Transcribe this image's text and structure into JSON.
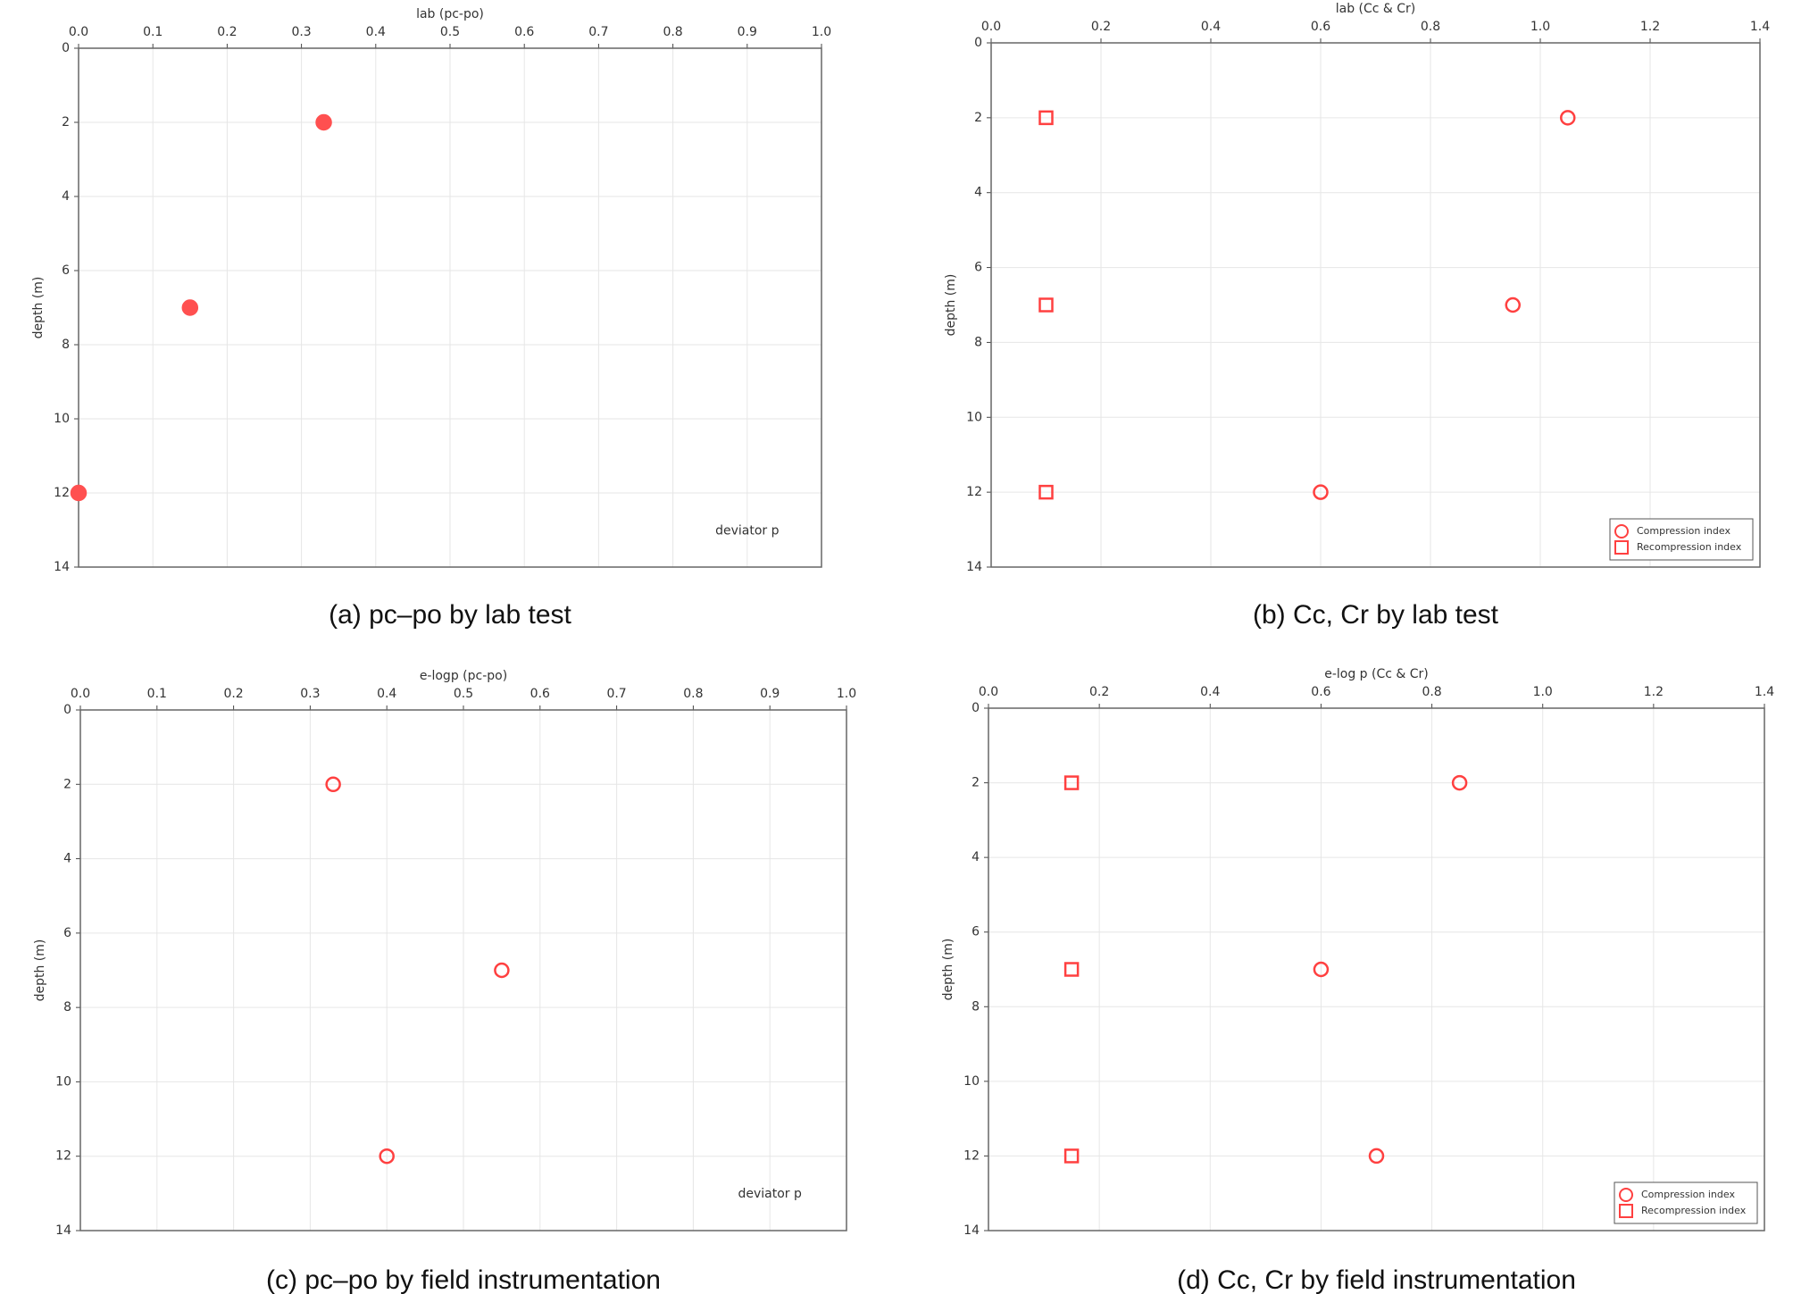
{
  "chart_data": [
    {
      "type": "scatter",
      "title": "lab (pc-po)",
      "caption": "(a) pc–po by lab test",
      "y_label": "depth (m)",
      "annotation": "deviator p",
      "xlim": [
        0,
        1
      ],
      "xticks": [
        {
          "value": 0,
          "label": "0.0"
        },
        0.1,
        0.2,
        0.3,
        0.4,
        0.5,
        0.6,
        0.7,
        0.8,
        0.9,
        {
          "value": 1,
          "label": "1.0"
        }
      ],
      "ylim": [
        0,
        14
      ],
      "yticks": [
        0,
        2,
        4,
        6,
        8,
        10,
        12,
        14
      ],
      "invert_y": true,
      "grid": true,
      "series": [
        {
          "color": "#ff5050",
          "marker": "circle",
          "filled": true,
          "x": [
            0.33,
            0.15,
            0.0
          ],
          "values": [
            2,
            7,
            12
          ]
        }
      ]
    },
    {
      "type": "scatter",
      "title": "lab (Cc & Cr)",
      "caption": "(b) Cc, Cr by lab test",
      "y_label": "depth (m)",
      "legend": "lower right",
      "xlim": [
        0,
        1.4
      ],
      "xticks": [
        {
          "value": 0,
          "label": "0.0"
        },
        0.2,
        0.4,
        0.6,
        0.8,
        {
          "value": 1,
          "label": "1.0"
        },
        1.2,
        1.4
      ],
      "ylim": [
        0,
        14
      ],
      "yticks": [
        0,
        2,
        4,
        6,
        8,
        10,
        12,
        14
      ],
      "invert_y": true,
      "grid": true,
      "series": [
        {
          "name": "Compression index",
          "color": "#ff4040",
          "marker": "circle",
          "filled": false,
          "x": [
            1.05,
            0.95,
            0.6
          ],
          "values": [
            2,
            7,
            12
          ]
        },
        {
          "name": "Recompression index",
          "color": "#ff4040",
          "marker": "square",
          "filled": false,
          "x": [
            0.1,
            0.1,
            0.1
          ],
          "values": [
            2,
            7,
            12
          ]
        }
      ]
    },
    {
      "type": "scatter",
      "title": "e-logp (pc-po)",
      "caption": "(c) pc–po by field instrumentation",
      "y_label": "depth (m)",
      "annotation": "deviator p",
      "xlim": [
        0,
        1
      ],
      "xticks": [
        {
          "value": 0,
          "label": "0.0"
        },
        0.1,
        0.2,
        0.3,
        0.4,
        0.5,
        0.6,
        0.7,
        0.8,
        0.9,
        {
          "value": 1,
          "label": "1.0"
        }
      ],
      "ylim": [
        0,
        14
      ],
      "yticks": [
        0,
        2,
        4,
        6,
        8,
        10,
        12,
        14
      ],
      "invert_y": true,
      "grid": true,
      "series": [
        {
          "color": "#ff4040",
          "marker": "circle",
          "filled": false,
          "x": [
            0.33,
            0.55,
            0.4
          ],
          "values": [
            2,
            7,
            12
          ]
        }
      ]
    },
    {
      "type": "scatter",
      "title": "e-log p (Cc & Cr)",
      "caption": "(d) Cc, Cr by field instrumentation",
      "y_label": "depth (m)",
      "legend": "lower right",
      "xlim": [
        0,
        1.4
      ],
      "xticks": [
        {
          "value": 0,
          "label": "0.0"
        },
        0.2,
        0.4,
        0.6,
        0.8,
        {
          "value": 1,
          "label": "1.0"
        },
        1.2,
        1.4
      ],
      "ylim": [
        0,
        14
      ],
      "yticks": [
        0,
        2,
        4,
        6,
        8,
        10,
        12,
        14
      ],
      "invert_y": true,
      "grid": true,
      "series": [
        {
          "name": "Compression index",
          "color": "#ff4040",
          "marker": "circle",
          "filled": false,
          "x": [
            0.85,
            0.6,
            0.7
          ],
          "values": [
            2,
            7,
            12
          ]
        },
        {
          "name": "Recompression index",
          "color": "#ff4040",
          "marker": "square",
          "filled": false,
          "x": [
            0.15,
            0.15,
            0.15
          ],
          "values": [
            2,
            7,
            12
          ]
        }
      ]
    }
  ]
}
